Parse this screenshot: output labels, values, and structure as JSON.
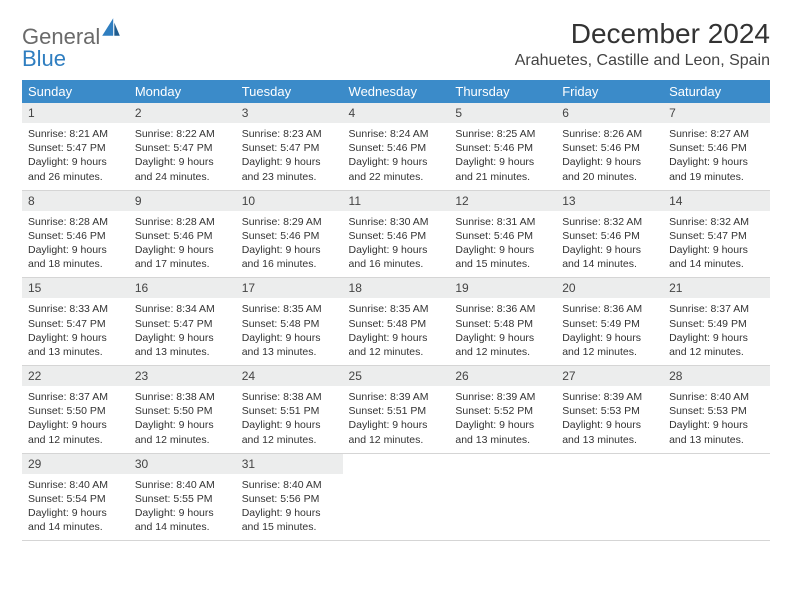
{
  "brand": {
    "part1": "General",
    "part2": "Blue"
  },
  "title": "December 2024",
  "location": "Arahuetes, Castille and Leon, Spain",
  "colors": {
    "header_bg": "#3b8bc9",
    "header_text": "#ffffff",
    "daynum_bg": "#eceded",
    "week_divider": "#3b8bc9",
    "cell_border": "#d5d5d5",
    "text": "#333333"
  },
  "day_headers": [
    "Sunday",
    "Monday",
    "Tuesday",
    "Wednesday",
    "Thursday",
    "Friday",
    "Saturday"
  ],
  "weeks": [
    [
      {
        "n": "1",
        "sr": "8:21 AM",
        "ss": "5:47 PM",
        "dl": "9 hours and 26 minutes."
      },
      {
        "n": "2",
        "sr": "8:22 AM",
        "ss": "5:47 PM",
        "dl": "9 hours and 24 minutes."
      },
      {
        "n": "3",
        "sr": "8:23 AM",
        "ss": "5:47 PM",
        "dl": "9 hours and 23 minutes."
      },
      {
        "n": "4",
        "sr": "8:24 AM",
        "ss": "5:46 PM",
        "dl": "9 hours and 22 minutes."
      },
      {
        "n": "5",
        "sr": "8:25 AM",
        "ss": "5:46 PM",
        "dl": "9 hours and 21 minutes."
      },
      {
        "n": "6",
        "sr": "8:26 AM",
        "ss": "5:46 PM",
        "dl": "9 hours and 20 minutes."
      },
      {
        "n": "7",
        "sr": "8:27 AM",
        "ss": "5:46 PM",
        "dl": "9 hours and 19 minutes."
      }
    ],
    [
      {
        "n": "8",
        "sr": "8:28 AM",
        "ss": "5:46 PM",
        "dl": "9 hours and 18 minutes."
      },
      {
        "n": "9",
        "sr": "8:28 AM",
        "ss": "5:46 PM",
        "dl": "9 hours and 17 minutes."
      },
      {
        "n": "10",
        "sr": "8:29 AM",
        "ss": "5:46 PM",
        "dl": "9 hours and 16 minutes."
      },
      {
        "n": "11",
        "sr": "8:30 AM",
        "ss": "5:46 PM",
        "dl": "9 hours and 16 minutes."
      },
      {
        "n": "12",
        "sr": "8:31 AM",
        "ss": "5:46 PM",
        "dl": "9 hours and 15 minutes."
      },
      {
        "n": "13",
        "sr": "8:32 AM",
        "ss": "5:46 PM",
        "dl": "9 hours and 14 minutes."
      },
      {
        "n": "14",
        "sr": "8:32 AM",
        "ss": "5:47 PM",
        "dl": "9 hours and 14 minutes."
      }
    ],
    [
      {
        "n": "15",
        "sr": "8:33 AM",
        "ss": "5:47 PM",
        "dl": "9 hours and 13 minutes."
      },
      {
        "n": "16",
        "sr": "8:34 AM",
        "ss": "5:47 PM",
        "dl": "9 hours and 13 minutes."
      },
      {
        "n": "17",
        "sr": "8:35 AM",
        "ss": "5:48 PM",
        "dl": "9 hours and 13 minutes."
      },
      {
        "n": "18",
        "sr": "8:35 AM",
        "ss": "5:48 PM",
        "dl": "9 hours and 12 minutes."
      },
      {
        "n": "19",
        "sr": "8:36 AM",
        "ss": "5:48 PM",
        "dl": "9 hours and 12 minutes."
      },
      {
        "n": "20",
        "sr": "8:36 AM",
        "ss": "5:49 PM",
        "dl": "9 hours and 12 minutes."
      },
      {
        "n": "21",
        "sr": "8:37 AM",
        "ss": "5:49 PM",
        "dl": "9 hours and 12 minutes."
      }
    ],
    [
      {
        "n": "22",
        "sr": "8:37 AM",
        "ss": "5:50 PM",
        "dl": "9 hours and 12 minutes."
      },
      {
        "n": "23",
        "sr": "8:38 AM",
        "ss": "5:50 PM",
        "dl": "9 hours and 12 minutes."
      },
      {
        "n": "24",
        "sr": "8:38 AM",
        "ss": "5:51 PM",
        "dl": "9 hours and 12 minutes."
      },
      {
        "n": "25",
        "sr": "8:39 AM",
        "ss": "5:51 PM",
        "dl": "9 hours and 12 minutes."
      },
      {
        "n": "26",
        "sr": "8:39 AM",
        "ss": "5:52 PM",
        "dl": "9 hours and 13 minutes."
      },
      {
        "n": "27",
        "sr": "8:39 AM",
        "ss": "5:53 PM",
        "dl": "9 hours and 13 minutes."
      },
      {
        "n": "28",
        "sr": "8:40 AM",
        "ss": "5:53 PM",
        "dl": "9 hours and 13 minutes."
      }
    ],
    [
      {
        "n": "29",
        "sr": "8:40 AM",
        "ss": "5:54 PM",
        "dl": "9 hours and 14 minutes."
      },
      {
        "n": "30",
        "sr": "8:40 AM",
        "ss": "5:55 PM",
        "dl": "9 hours and 14 minutes."
      },
      {
        "n": "31",
        "sr": "8:40 AM",
        "ss": "5:56 PM",
        "dl": "9 hours and 15 minutes."
      },
      null,
      null,
      null,
      null
    ]
  ],
  "labels": {
    "sunrise": "Sunrise:",
    "sunset": "Sunset:",
    "daylight": "Daylight:"
  }
}
